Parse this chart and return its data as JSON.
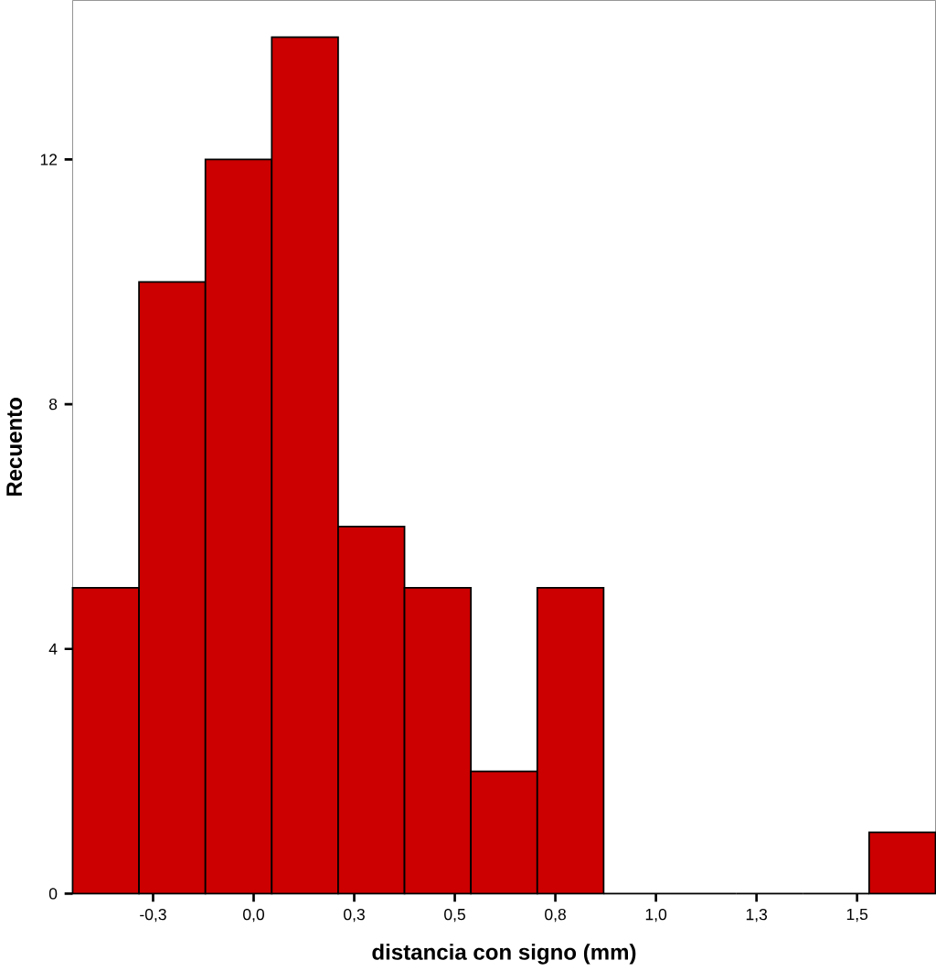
{
  "chart_data": {
    "type": "histogram",
    "xlabel": "distancia con signo (mm)",
    "ylabel": "Recuento",
    "color": "#cc0000",
    "bins": [
      -0.45,
      -0.285,
      -0.12,
      0.045,
      0.21,
      0.375,
      0.54,
      0.705,
      0.87,
      1.035,
      1.2,
      1.365,
      1.53,
      1.695
    ],
    "values": [
      5,
      10,
      12,
      14,
      6,
      5,
      2,
      5,
      0,
      0,
      0,
      0,
      1
    ],
    "xlim": [
      -0.45,
      1.695
    ],
    "ylim": [
      0,
      14.6
    ],
    "xticks": [
      {
        "value": -0.25,
        "label": "-0,3"
      },
      {
        "value": 0,
        "label": "0,0"
      },
      {
        "value": 0.25,
        "label": "0,3"
      },
      {
        "value": 0.5,
        "label": "0,5"
      },
      {
        "value": 0.75,
        "label": "0,8"
      },
      {
        "value": 1.0,
        "label": "1,0"
      },
      {
        "value": 1.25,
        "label": "1,3"
      },
      {
        "value": 1.5,
        "label": "1,5"
      }
    ],
    "yticks": [
      0,
      4,
      8,
      12
    ],
    "grid": false
  }
}
